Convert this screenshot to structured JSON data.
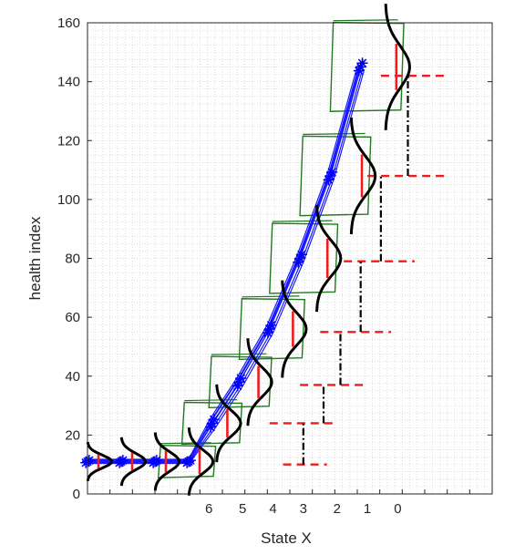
{
  "chart_data": {
    "type": "line",
    "xlabel": "State X",
    "ylabel": "health index",
    "ylim": [
      0,
      160
    ],
    "yticks": [
      0,
      20,
      40,
      60,
      80,
      100,
      120,
      140,
      160
    ],
    "xtick_labels": [
      "6",
      "5",
      "4",
      "3",
      "2",
      "1",
      "0"
    ],
    "xlim": [
      0,
      12
    ],
    "xtick_positions": [
      3.6,
      4.6,
      5.5,
      6.4,
      7.4,
      8.3,
      9.2
    ],
    "grid": true,
    "grid_style": "dotted-minor",
    "colors": {
      "trajectories": "#1a1aff",
      "markers": "#0000ff",
      "distributions": "#000000",
      "means": "#ee1c1c",
      "dashed_levels": "#ee1c1c",
      "boxes": "#1f7a1f",
      "step_connectors": "#000000"
    },
    "states": [
      {
        "x": 0.0,
        "mean": 11
      },
      {
        "x": 1.0,
        "mean": 11
      },
      {
        "x": 2.0,
        "mean": 11
      },
      {
        "x": 3.0,
        "mean": 11
      },
      {
        "x": 3.7,
        "mean": 24
      },
      {
        "x": 4.5,
        "mean": 38
      },
      {
        "x": 5.4,
        "mean": 56
      },
      {
        "x": 6.3,
        "mean": 80
      },
      {
        "x": 7.2,
        "mean": 108
      },
      {
        "x": 8.1,
        "mean": 145
      }
    ],
    "dashed_levels": [
      {
        "y": 10,
        "x_from": 5.8,
        "x_to": 7.1
      },
      {
        "y": 24,
        "x_from": 5.4,
        "x_to": 7.4
      },
      {
        "y": 37,
        "x_from": 6.3,
        "x_to": 8.2
      },
      {
        "y": 55,
        "x_from": 6.9,
        "x_to": 9.0
      },
      {
        "y": 79,
        "x_from": 7.6,
        "x_to": 9.7
      },
      {
        "y": 108,
        "x_from": 8.3,
        "x_to": 10.6
      },
      {
        "y": 142,
        "x_from": 8.7,
        "x_to": 10.6
      }
    ],
    "step_connectors": [
      {
        "x": 6.4,
        "y_from": 10,
        "y_to": 24
      },
      {
        "x": 7.0,
        "y_from": 24,
        "y_to": 37
      },
      {
        "x": 7.5,
        "y_from": 37,
        "y_to": 55
      },
      {
        "x": 8.1,
        "y_from": 55,
        "y_to": 79
      },
      {
        "x": 8.7,
        "y_from": 79,
        "y_to": 108
      },
      {
        "x": 9.5,
        "y_from": 108,
        "y_to": 142
      }
    ]
  }
}
